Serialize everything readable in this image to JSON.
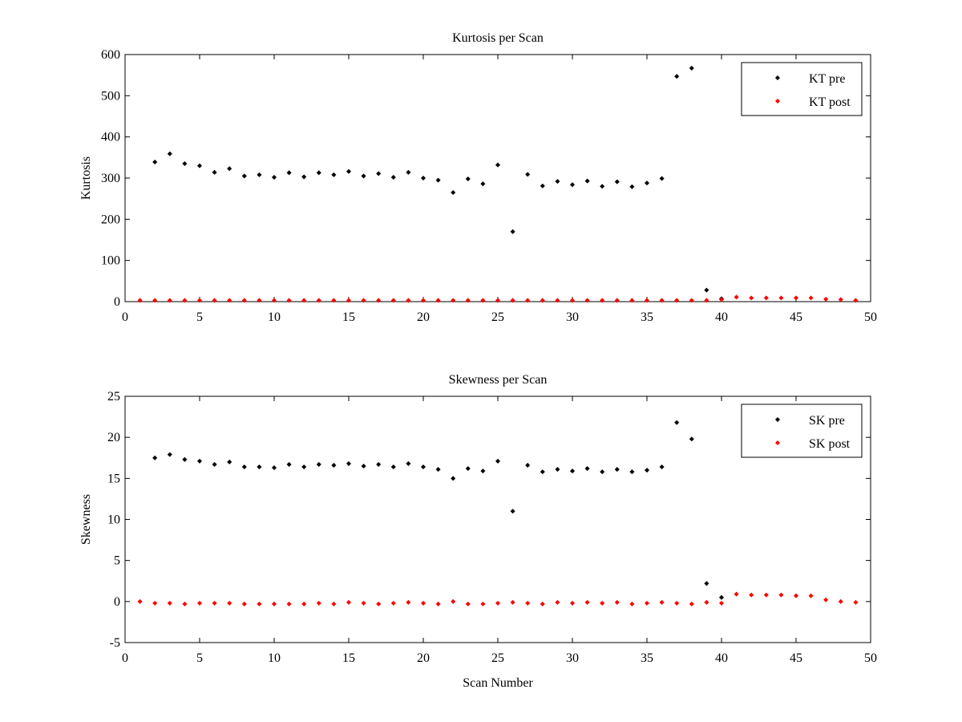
{
  "chart_data": [
    {
      "type": "scatter",
      "title": "Kurtosis per Scan",
      "xlabel": "",
      "ylabel": "Kurtosis",
      "xlim": [
        0,
        50
      ],
      "ylim": [
        0,
        600
      ],
      "xticks": [
        "0",
        "5",
        "10",
        "15",
        "20",
        "25",
        "30",
        "35",
        "40",
        "45",
        "50"
      ],
      "yticks": [
        "0",
        "100",
        "200",
        "300",
        "400",
        "500",
        "600"
      ],
      "legend_position": "top-right",
      "grid": false,
      "series": [
        {
          "name": "KT pre",
          "color": "#000000",
          "marker": "diamond",
          "points": [
            [
              2,
              339
            ],
            [
              3,
              359
            ],
            [
              4,
              335
            ],
            [
              5,
              330
            ],
            [
              6,
              314
            ],
            [
              7,
              323
            ],
            [
              8,
              305
            ],
            [
              9,
              308
            ],
            [
              10,
              302
            ],
            [
              11,
              313
            ],
            [
              12,
              303
            ],
            [
              13,
              313
            ],
            [
              14,
              308
            ],
            [
              15,
              316
            ],
            [
              16,
              305
            ],
            [
              17,
              311
            ],
            [
              18,
              302
            ],
            [
              19,
              314
            ],
            [
              20,
              300
            ],
            [
              21,
              295
            ],
            [
              22,
              265
            ],
            [
              23,
              298
            ],
            [
              24,
              286
            ],
            [
              25,
              332
            ],
            [
              26,
              170
            ],
            [
              27,
              309
            ],
            [
              28,
              281
            ],
            [
              29,
              292
            ],
            [
              30,
              284
            ],
            [
              31,
              293
            ],
            [
              32,
              280
            ],
            [
              33,
              291
            ],
            [
              34,
              279
            ],
            [
              35,
              288
            ],
            [
              36,
              299
            ],
            [
              37,
              547
            ],
            [
              38,
              567
            ],
            [
              39,
              28
            ],
            [
              40,
              7
            ]
          ]
        },
        {
          "name": "KT post",
          "color": "#ff0000",
          "marker": "diamond",
          "points": [
            [
              1,
              3
            ],
            [
              2,
              3
            ],
            [
              3,
              3
            ],
            [
              4,
              3
            ],
            [
              5,
              3
            ],
            [
              6,
              3
            ],
            [
              7,
              3
            ],
            [
              8,
              3
            ],
            [
              9,
              3
            ],
            [
              10,
              3
            ],
            [
              11,
              3
            ],
            [
              12,
              3
            ],
            [
              13,
              3
            ],
            [
              14,
              3
            ],
            [
              15,
              3
            ],
            [
              16,
              3
            ],
            [
              17,
              3
            ],
            [
              18,
              3
            ],
            [
              19,
              3
            ],
            [
              20,
              3
            ],
            [
              21,
              3
            ],
            [
              22,
              3
            ],
            [
              23,
              3
            ],
            [
              24,
              3
            ],
            [
              25,
              3
            ],
            [
              26,
              3
            ],
            [
              27,
              3
            ],
            [
              28,
              3
            ],
            [
              29,
              3
            ],
            [
              30,
              3
            ],
            [
              31,
              3
            ],
            [
              32,
              3
            ],
            [
              33,
              3
            ],
            [
              34,
              3
            ],
            [
              35,
              3
            ],
            [
              36,
              3
            ],
            [
              37,
              3
            ],
            [
              38,
              3
            ],
            [
              39,
              3
            ],
            [
              40,
              5
            ],
            [
              41,
              11
            ],
            [
              42,
              9
            ],
            [
              43,
              9
            ],
            [
              44,
              9
            ],
            [
              45,
              9
            ],
            [
              46,
              9
            ],
            [
              47,
              6
            ],
            [
              48,
              5
            ],
            [
              49,
              3
            ]
          ]
        }
      ]
    },
    {
      "type": "scatter",
      "title": "Skewness per Scan",
      "xlabel": "Scan Number",
      "ylabel": "Skewness",
      "xlim": [
        0,
        50
      ],
      "ylim": [
        -5,
        25
      ],
      "xticks": [
        "0",
        "5",
        "10",
        "15",
        "20",
        "25",
        "30",
        "35",
        "40",
        "45",
        "50"
      ],
      "yticks": [
        "-5",
        "0",
        "5",
        "10",
        "15",
        "20",
        "25"
      ],
      "legend_position": "top-right",
      "grid": false,
      "series": [
        {
          "name": "SK pre",
          "color": "#000000",
          "marker": "diamond",
          "points": [
            [
              2,
              17.5
            ],
            [
              3,
              17.9
            ],
            [
              4,
              17.3
            ],
            [
              5,
              17.1
            ],
            [
              6,
              16.7
            ],
            [
              7,
              17.0
            ],
            [
              8,
              16.4
            ],
            [
              9,
              16.4
            ],
            [
              10,
              16.3
            ],
            [
              11,
              16.7
            ],
            [
              12,
              16.4
            ],
            [
              13,
              16.7
            ],
            [
              14,
              16.6
            ],
            [
              15,
              16.8
            ],
            [
              16,
              16.5
            ],
            [
              17,
              16.7
            ],
            [
              18,
              16.4
            ],
            [
              19,
              16.8
            ],
            [
              20,
              16.4
            ],
            [
              21,
              16.1
            ],
            [
              22,
              15.0
            ],
            [
              23,
              16.2
            ],
            [
              24,
              15.9
            ],
            [
              25,
              17.1
            ],
            [
              26,
              11.0
            ],
            [
              27,
              16.6
            ],
            [
              28,
              15.8
            ],
            [
              29,
              16.1
            ],
            [
              30,
              15.9
            ],
            [
              31,
              16.2
            ],
            [
              32,
              15.8
            ],
            [
              33,
              16.1
            ],
            [
              34,
              15.8
            ],
            [
              35,
              16.0
            ],
            [
              36,
              16.4
            ],
            [
              37,
              21.8
            ],
            [
              38,
              19.8
            ],
            [
              39,
              2.2
            ],
            [
              40,
              0.5
            ]
          ]
        },
        {
          "name": "SK post",
          "color": "#ff0000",
          "marker": "diamond",
          "points": [
            [
              1,
              0.0
            ],
            [
              2,
              -0.2
            ],
            [
              3,
              -0.2
            ],
            [
              4,
              -0.3
            ],
            [
              5,
              -0.2
            ],
            [
              6,
              -0.2
            ],
            [
              7,
              -0.2
            ],
            [
              8,
              -0.3
            ],
            [
              9,
              -0.3
            ],
            [
              10,
              -0.3
            ],
            [
              11,
              -0.3
            ],
            [
              12,
              -0.3
            ],
            [
              13,
              -0.2
            ],
            [
              14,
              -0.3
            ],
            [
              15,
              -0.1
            ],
            [
              16,
              -0.2
            ],
            [
              17,
              -0.3
            ],
            [
              18,
              -0.2
            ],
            [
              19,
              -0.1
            ],
            [
              20,
              -0.2
            ],
            [
              21,
              -0.3
            ],
            [
              22,
              0.0
            ],
            [
              23,
              -0.3
            ],
            [
              24,
              -0.3
            ],
            [
              25,
              -0.2
            ],
            [
              26,
              -0.1
            ],
            [
              27,
              -0.2
            ],
            [
              28,
              -0.3
            ],
            [
              29,
              -0.1
            ],
            [
              30,
              -0.2
            ],
            [
              31,
              -0.1
            ],
            [
              32,
              -0.2
            ],
            [
              33,
              -0.1
            ],
            [
              34,
              -0.3
            ],
            [
              35,
              -0.2
            ],
            [
              36,
              -0.1
            ],
            [
              37,
              -0.2
            ],
            [
              38,
              -0.3
            ],
            [
              39,
              -0.1
            ],
            [
              40,
              -0.2
            ],
            [
              41,
              0.9
            ],
            [
              42,
              0.8
            ],
            [
              43,
              0.8
            ],
            [
              44,
              0.8
            ],
            [
              45,
              0.7
            ],
            [
              46,
              0.7
            ],
            [
              47,
              0.2
            ],
            [
              48,
              0.0
            ],
            [
              49,
              -0.1
            ]
          ]
        }
      ]
    }
  ]
}
